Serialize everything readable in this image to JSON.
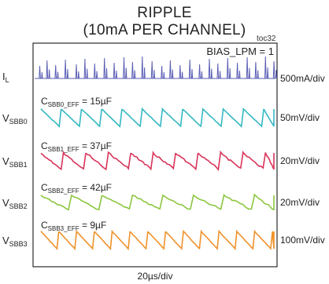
{
  "chart_data": {
    "type": "line",
    "title": "RIPPLE",
    "subtitle": "(10mA PER CHANNEL)",
    "figure_id": "toc32",
    "condition": "BIAS_LPM = 1",
    "xlabel": "20µs/div",
    "x_divisions": 10,
    "y_divisions": 8,
    "grid": false,
    "traces": [
      {
        "name": "IL",
        "main": "I",
        "sub": "L",
        "scale": "500mA/div",
        "color": "#5b5fb5",
        "waveform": "inductor current pulses",
        "spike_positions_div": [
          0.25,
          0.55,
          0.9,
          1.3,
          1.75,
          2.1,
          2.5,
          2.9,
          3.3,
          3.7,
          4.05,
          4.45,
          4.85,
          5.25,
          5.6,
          6.0,
          6.4,
          6.8,
          7.2,
          7.55,
          7.95,
          8.35,
          8.75,
          9.1,
          9.5,
          9.85
        ]
      },
      {
        "name": "VSBB0",
        "main": "V",
        "sub": "SBB0",
        "scale": "50mV/div",
        "color": "#33b8c2",
        "cap_label_main": "C",
        "cap_label_sub": "SBB0_EFF",
        "cap_label_value": " = 15µF",
        "waveform": "sawtooth",
        "period_div": 0.83
      },
      {
        "name": "VSBB1",
        "main": "V",
        "sub": "SBB1",
        "scale": "20mV/div",
        "color": "#d9345a",
        "cap_label_main": "C",
        "cap_label_sub": "SBB1_EFF",
        "cap_label_value": " = 37µF",
        "waveform": "sawtooth",
        "period_div": 0.92
      },
      {
        "name": "VSBB2",
        "main": "V",
        "sub": "SBB2",
        "scale": "20mV/div",
        "color": "#8cc63f",
        "cap_label_main": "C",
        "cap_label_sub": "SBB2_EFF",
        "cap_label_value": " = 42µF",
        "waveform": "sawtooth",
        "period_div": 1.25
      },
      {
        "name": "VSBB3",
        "main": "V",
        "sub": "SBB3",
        "scale": "100mV/div",
        "color": "#f0922b",
        "cap_label_main": "C",
        "cap_label_sub": "SBB3_EFF",
        "cap_label_value": " = 9µF",
        "waveform": "sawtooth",
        "period_div": 0.73
      }
    ]
  }
}
